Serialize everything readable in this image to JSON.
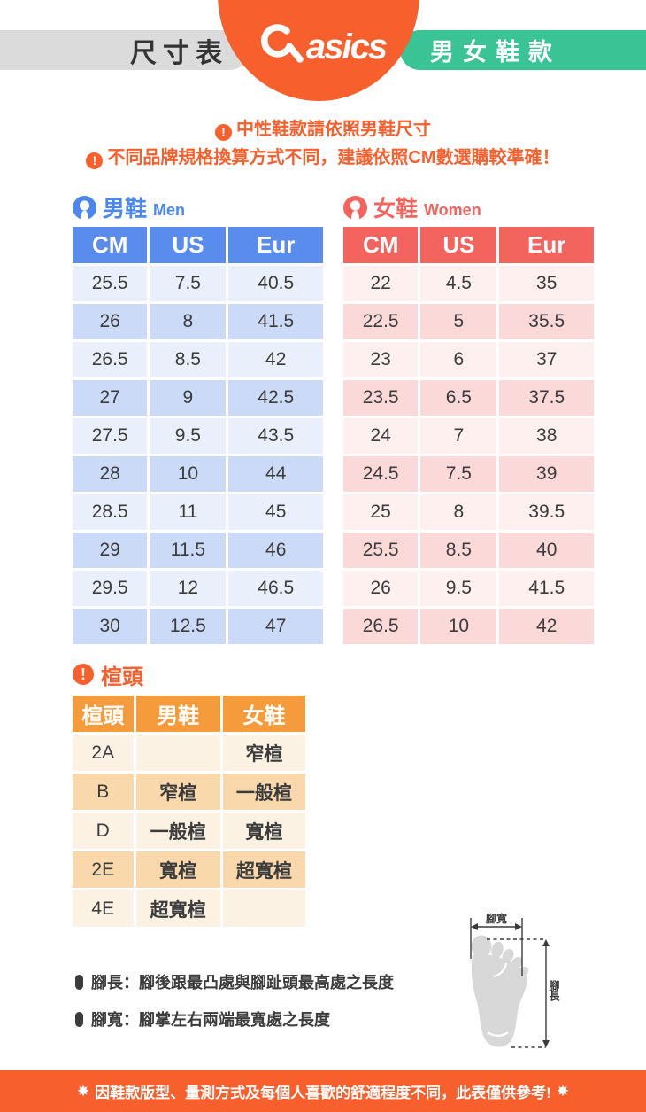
{
  "header": {
    "title": "尺寸表",
    "brand": "asics",
    "badge": "男女鞋款"
  },
  "icons": {
    "exclamation": "!"
  },
  "notices": {
    "line1": "中性鞋款請依照男鞋尺寸",
    "line2": "不同品牌規格換算方式不同，建議依照CM數選購較準確！"
  },
  "men_table": {
    "section_title": "男鞋",
    "section_subtitle": "Men",
    "columns": [
      "CM",
      "US",
      "Eur"
    ],
    "rows": [
      [
        "25.5",
        "7.5",
        "40.5"
      ],
      [
        "26",
        "8",
        "41.5"
      ],
      [
        "26.5",
        "8.5",
        "42"
      ],
      [
        "27",
        "9",
        "42.5"
      ],
      [
        "27.5",
        "9.5",
        "43.5"
      ],
      [
        "28",
        "10",
        "44"
      ],
      [
        "28.5",
        "11",
        "45"
      ],
      [
        "29",
        "11.5",
        "46"
      ],
      [
        "29.5",
        "12",
        "46.5"
      ],
      [
        "30",
        "12.5",
        "47"
      ]
    ]
  },
  "women_table": {
    "section_title": "女鞋",
    "section_subtitle": "Women",
    "columns": [
      "CM",
      "US",
      "Eur"
    ],
    "rows": [
      [
        "22",
        "4.5",
        "35"
      ],
      [
        "22.5",
        "5",
        "35.5"
      ],
      [
        "23",
        "6",
        "37"
      ],
      [
        "23.5",
        "6.5",
        "37.5"
      ],
      [
        "24",
        "7",
        "38"
      ],
      [
        "24.5",
        "7.5",
        "39"
      ],
      [
        "25",
        "8",
        "39.5"
      ],
      [
        "25.5",
        "8.5",
        "40"
      ],
      [
        "26",
        "9.5",
        "41.5"
      ],
      [
        "26.5",
        "10",
        "42"
      ]
    ]
  },
  "width_table": {
    "section_title": "楦頭",
    "columns": [
      "楦頭",
      "男鞋",
      "女鞋"
    ],
    "rows": [
      [
        "2A",
        "",
        "窄楦"
      ],
      [
        "B",
        "窄楦",
        "一般楦"
      ],
      [
        "D",
        "一般楦",
        "寬楦"
      ],
      [
        "2E",
        "寬楦",
        "超寬楦"
      ],
      [
        "4E",
        "超寬楦",
        ""
      ]
    ]
  },
  "foot_notes": [
    {
      "text": "腳長：腳後跟最凸處與腳趾頭最高處之長度"
    },
    {
      "text": "腳寬：腳掌左右兩端最寬處之長度"
    }
  ],
  "diagram": {
    "width_label": "腳寬",
    "length_label": "腳長"
  },
  "footer": {
    "star": "✸",
    "text": "因鞋款版型、量測方式及每個人喜歡的舒適程度不同，此表僅供參考!"
  },
  "colors": {
    "orange": "#f75f2d",
    "green": "#3ac394",
    "gray_pill": "#dbdbdb",
    "men_header": "#5a8cee",
    "men_row_light": "#eaf0fb",
    "men_row_dark": "#cbdaf7",
    "women_header": "#f4645f",
    "women_row_light": "#fdf0ef",
    "women_row_dark": "#fbd9d8",
    "width_header": "#f59b3c",
    "width_row_light": "#fcf2e4",
    "width_row_dark": "#f9d8ac"
  }
}
